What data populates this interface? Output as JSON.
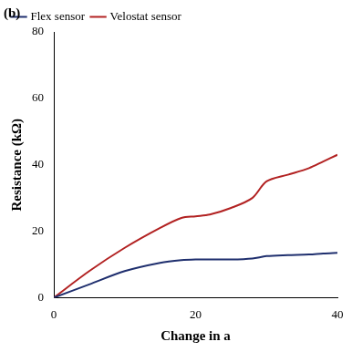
{
  "chart_data": {
    "type": "line",
    "annotations": [
      "(b)"
    ],
    "x_label": "Change in a",
    "y_label": "Resistance (kΩ)",
    "x": [
      0,
      5,
      10,
      15,
      18,
      20,
      22,
      25,
      28,
      30,
      33,
      36,
      38,
      40
    ],
    "series": [
      {
        "name": "Flex sensor",
        "color": "#1f2f6e",
        "values": [
          0,
          4,
          8,
          10.5,
          11.3,
          11.5,
          11.5,
          11.5,
          11.8,
          12.5,
          12.8,
          13,
          13.3,
          13.5
        ]
      },
      {
        "name": "Velostat sensor",
        "color": "#b22222",
        "values": [
          0,
          8,
          15,
          21,
          24,
          24.5,
          25,
          27,
          30,
          35,
          37,
          39,
          41,
          43
        ]
      }
    ],
    "xlim": [
      0,
      40
    ],
    "xticks": [
      0,
      20,
      40
    ],
    "ylim": [
      0,
      80
    ],
    "yticks": [
      0,
      20,
      40,
      60,
      80
    ],
    "grid": false,
    "legend": "top-left"
  }
}
